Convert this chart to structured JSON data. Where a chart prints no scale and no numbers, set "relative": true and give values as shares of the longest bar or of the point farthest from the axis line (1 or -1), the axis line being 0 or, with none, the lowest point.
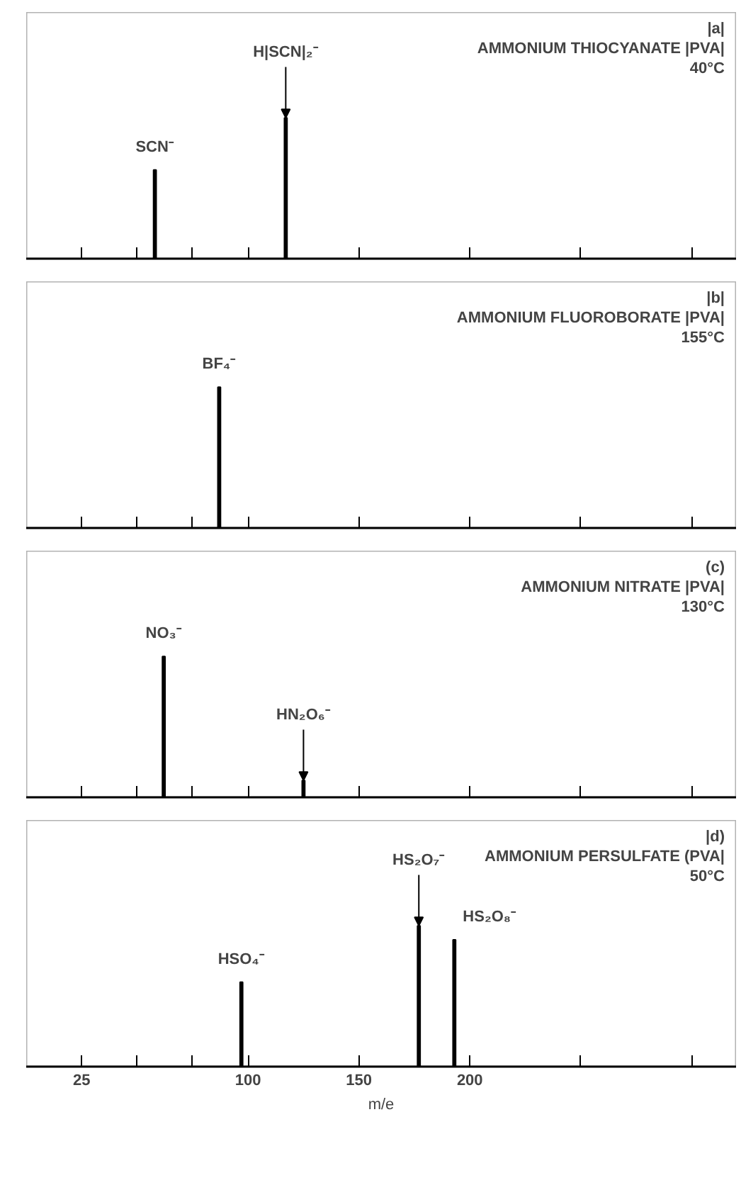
{
  "chart_data": [
    {
      "type": "bar",
      "title": "|a|",
      "subtitle": "AMMONIUM THIOCYANATE |PVA|\n40°C",
      "x": [
        58,
        117
      ],
      "values": [
        0.63,
        1.0
      ],
      "color": "#000000",
      "relative": true,
      "xlim": [
        0,
        320
      ],
      "xticks": [
        {
          "value": 25,
          "label": null
        },
        {
          "value": 50,
          "label": null
        },
        {
          "value": 75,
          "label": null
        },
        {
          "value": 100,
          "label": null
        },
        {
          "value": 150,
          "label": null
        },
        {
          "value": 200,
          "label": null
        },
        {
          "value": 250,
          "label": null
        },
        {
          "value": 300,
          "label": null
        }
      ],
      "tick_labels": false,
      "annotations": [
        {
          "text": "SCN⁻",
          "x": 58,
          "y": 0.63
        },
        {
          "text": "H|SCN|₂⁻",
          "x": 117,
          "y": 1.0
        }
      ]
    },
    {
      "type": "bar",
      "title": "|b|",
      "subtitle": "AMMONIUM FLUOROBORATE |PVA|\n155°C",
      "x": [
        87
      ],
      "values": [
        1.0
      ],
      "color": "#000000",
      "relative": true,
      "xlim": [
        0,
        320
      ],
      "xticks": [
        {
          "value": 25,
          "label": null
        },
        {
          "value": 50,
          "label": null
        },
        {
          "value": 75,
          "label": null
        },
        {
          "value": 100,
          "label": null
        },
        {
          "value": 150,
          "label": null
        },
        {
          "value": 200,
          "label": null
        },
        {
          "value": 250,
          "label": null
        },
        {
          "value": 300,
          "label": null
        }
      ],
      "tick_labels": false,
      "annotations": [
        {
          "text": "BF₄⁻",
          "x": 87,
          "y": 1.0
        }
      ]
    },
    {
      "type": "bar",
      "title": "(c)",
      "subtitle": "AMMONIUM NITRATE |PVA|\n130°C",
      "x": [
        62,
        125
      ],
      "values": [
        1.0,
        0.12
      ],
      "color": "#000000",
      "relative": true,
      "xlim": [
        0,
        320
      ],
      "xticks": [
        {
          "value": 25,
          "label": null
        },
        {
          "value": 50,
          "label": null
        },
        {
          "value": 75,
          "label": null
        },
        {
          "value": 100,
          "label": null
        },
        {
          "value": 150,
          "label": null
        },
        {
          "value": 200,
          "label": null
        },
        {
          "value": 250,
          "label": null
        },
        {
          "value": 300,
          "label": null
        }
      ],
      "tick_labels": false,
      "annotations": [
        {
          "text": "NO₃⁻",
          "x": 62,
          "y": 1.0
        },
        {
          "text": "HN₂O₆⁻",
          "x": 125,
          "y": 0.12
        }
      ]
    },
    {
      "type": "bar",
      "title": "|d)",
      "subtitle": "AMMONIUM PERSULFATE (PVA|\n50°C",
      "xlabel": "m/e",
      "x": [
        97,
        177,
        193
      ],
      "values": [
        0.6,
        1.0,
        0.9
      ],
      "color": "#000000",
      "relative": true,
      "xlim": [
        0,
        320
      ],
      "xticks": [
        25,
        {
          "value": 50,
          "label": null
        },
        {
          "value": 75,
          "label": null
        },
        100,
        150,
        200,
        {
          "value": 250,
          "label": null
        },
        {
          "value": 300,
          "label": null
        }
      ],
      "tick_labels": "x",
      "annotations": [
        {
          "text": "HSO₄⁻",
          "x": 97,
          "y": 0.6
        },
        {
          "text": "HS₂O₇⁻",
          "x": 177,
          "y": 1.0
        },
        {
          "text": "HS₂O₈⁻",
          "x": 193,
          "y": 0.9
        }
      ]
    }
  ]
}
